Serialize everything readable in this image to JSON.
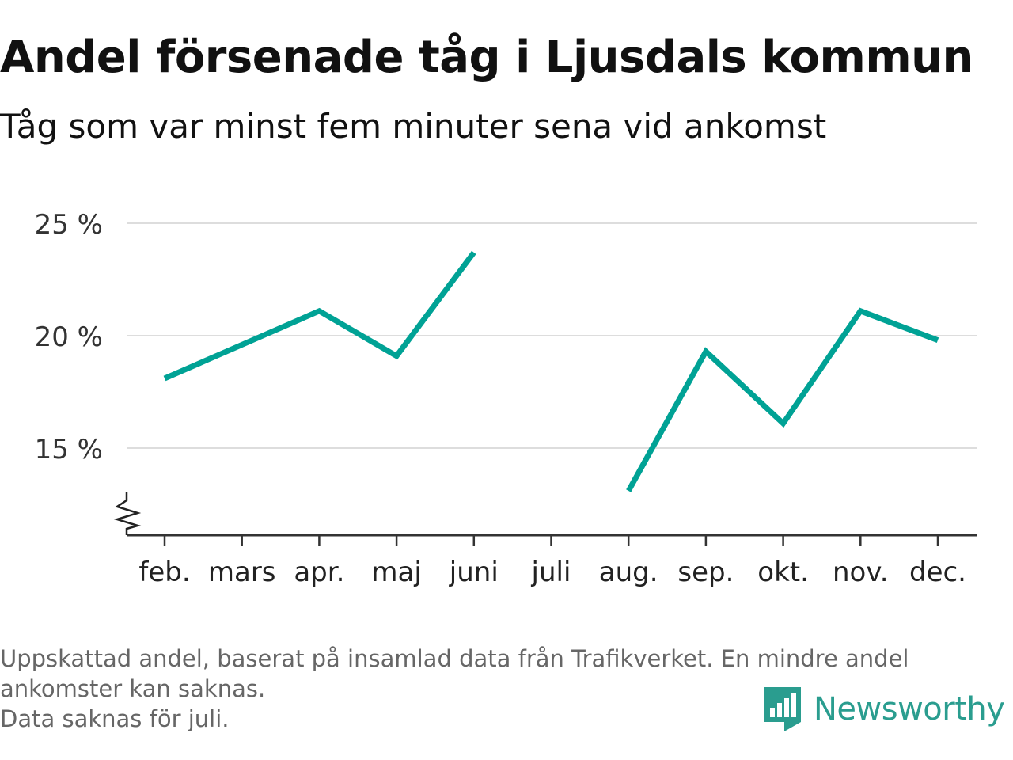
{
  "title": "Andel försenade tåg i Ljusdals kommun",
  "subtitle": "Tåg som var minst fem minuter sena vid ankomst",
  "footnote": {
    "line1": "Uppskattad andel, baserat på insamlad data från Trafikverket. En mindre andel",
    "line2": "ankomster kan saknas.",
    "line3": "Data saknas för juli."
  },
  "brand": {
    "name": "Newsworthy",
    "color": "#2a9d8f"
  },
  "chart_data": {
    "type": "line",
    "categories": [
      "feb.",
      "mars",
      "apr.",
      "maj",
      "juni",
      "juli",
      "aug.",
      "sep.",
      "okt.",
      "nov.",
      "dec."
    ],
    "series": [
      {
        "values": [
          18.1,
          19.6,
          21.1,
          19.1,
          23.7,
          null,
          13.1,
          19.3,
          16.1,
          21.1,
          19.8
        ],
        "color": "#00a295"
      }
    ],
    "yticks": [
      15,
      20,
      25
    ],
    "ytick_labels": [
      "15 %",
      "20 %",
      "25 %"
    ],
    "ylim": [
      11.2,
      25
    ],
    "axis_break": true,
    "grid": true,
    "legend": "none",
    "xlabel": "",
    "ylabel": ""
  }
}
